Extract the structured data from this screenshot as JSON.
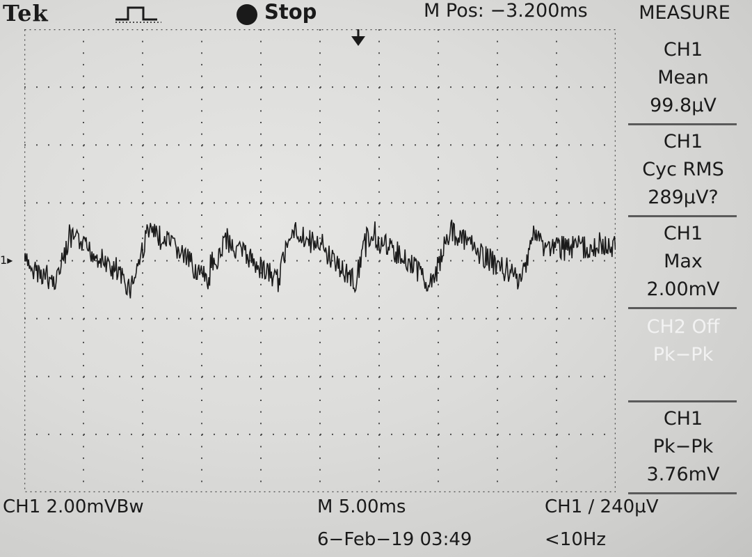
{
  "header": {
    "brand": "Tek",
    "trigger_icon": "pulse-trigger-icon",
    "run_state": "Stop",
    "m_pos": "M Pos: −3.200ms"
  },
  "measure": {
    "title": "MEASURE",
    "boxes": [
      {
        "l1": "CH1",
        "l2": "Mean",
        "l3": "99.8µV"
      },
      {
        "l1": "CH1",
        "l2": "Cyc RMS",
        "l3": "289µV?"
      },
      {
        "l1": "CH1",
        "l2": "Max",
        "l3": "2.00mV"
      },
      {
        "l1": "CH2 Off",
        "l2": "Pk−Pk",
        "l3": ""
      },
      {
        "l1": "CH1",
        "l2": "Pk−Pk",
        "l3": "3.76mV"
      }
    ]
  },
  "channel_marker": {
    "text": "1",
    "arrow": "▸"
  },
  "footer": {
    "ch1_scale": "CH1  2.00mVBw",
    "timebase": "M 5.00ms",
    "trigger": "CH1 ∕ 240µV",
    "datetime": "6−Feb−19 03:49",
    "freq": "<10Hz"
  },
  "colors": {
    "trace": "#1a1a1a",
    "grid": "#4a4a4a",
    "background": "#dcdcda"
  },
  "trace": {
    "description_points_mV": [
      [
        0.0,
        0.1
      ],
      [
        0.5,
        -0.6
      ],
      [
        0.8,
        0.9
      ],
      [
        1.3,
        0.2
      ],
      [
        1.8,
        -0.8
      ],
      [
        2.1,
        1.2
      ],
      [
        2.6,
        0.5
      ],
      [
        3.1,
        -0.6
      ],
      [
        3.4,
        0.9
      ],
      [
        3.7,
        0.4
      ],
      [
        4.3,
        -0.6
      ],
      [
        4.5,
        1.3
      ],
      [
        5.1,
        0.4
      ],
      [
        5.6,
        -0.6
      ],
      [
        5.8,
        1.0
      ],
      [
        6.4,
        0.3
      ],
      [
        6.9,
        -0.7
      ],
      [
        7.2,
        1.2
      ],
      [
        7.7,
        0.4
      ],
      [
        8.4,
        -0.6
      ],
      [
        8.6,
        1.1
      ],
      [
        8.8,
        0.6
      ]
    ]
  }
}
